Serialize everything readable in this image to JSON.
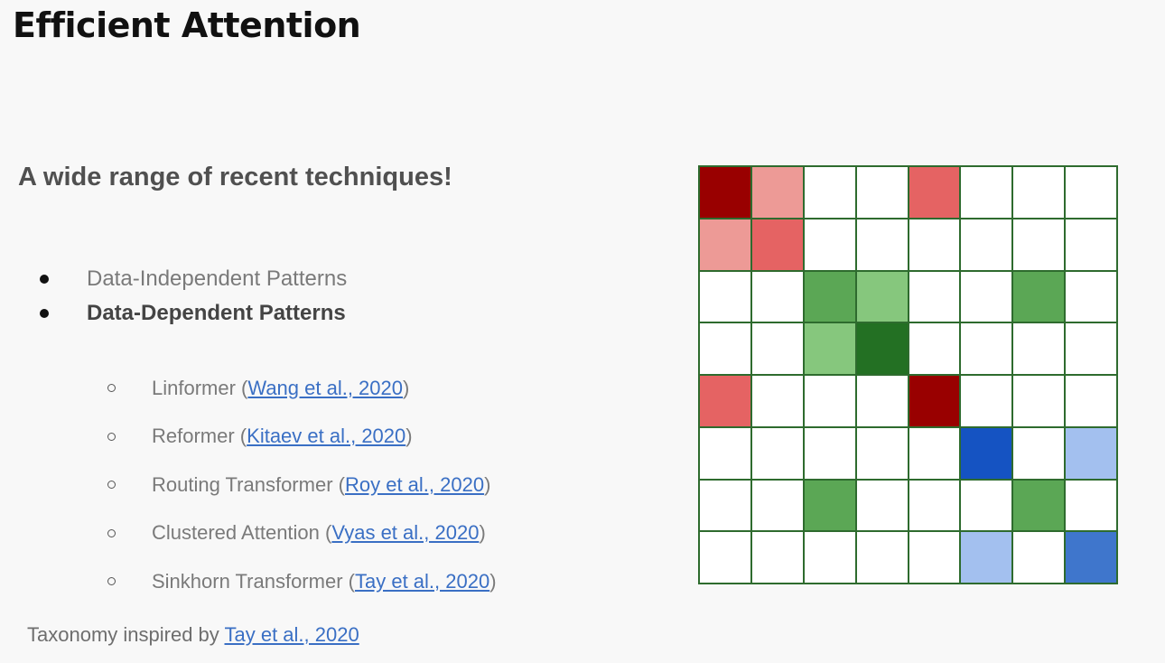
{
  "title": "Efficient Attention",
  "subtitle": "A wide range of recent techniques!",
  "bullets": [
    {
      "text": "Data-Independent Patterns"
    },
    {
      "text": "Data-Dependent Patterns"
    }
  ],
  "sub_bullets": [
    {
      "name": "Linformer",
      "open": " (",
      "cite": "Wang et al., 2020",
      "close": ")"
    },
    {
      "name": "Reformer",
      "open": " (",
      "cite": "Kitaev et al., 2020",
      "close": ")"
    },
    {
      "name": "Routing Transformer",
      "open": " (",
      "cite": "Roy et al., 2020",
      "close": ")"
    },
    {
      "name": "Clustered Attention",
      "open": " (",
      "cite": "Vyas et al., 2020",
      "close": ")"
    },
    {
      "name": "Sinkhorn Transformer",
      "open": " (",
      "cite": "Tay et al., 2020",
      "close": ")"
    }
  ],
  "footer": {
    "prefix": "Taxonomy inspired by ",
    "cite": "Tay et al., 2020"
  },
  "colors": {
    "grid_line": "#2e6b2e",
    "link": "#3a6fc4",
    "R": "#990000",
    "r": "#e56363",
    "p": "#ed9a96",
    "G": "#237023",
    "g": "#5ba755",
    "l": "#86c77d",
    "B": "#1553c2",
    "b": "#3f76cc",
    "c": "#a3c0ef"
  },
  "matrix": [
    [
      "R",
      "p",
      ".",
      ".",
      "r",
      ".",
      ".",
      "."
    ],
    [
      "p",
      "r",
      ".",
      ".",
      ".",
      ".",
      ".",
      "."
    ],
    [
      ".",
      ".",
      "g",
      "l",
      ".",
      ".",
      "g",
      "."
    ],
    [
      ".",
      ".",
      "l",
      "G",
      ".",
      ".",
      ".",
      "."
    ],
    [
      "r",
      ".",
      ".",
      ".",
      "R",
      ".",
      ".",
      "."
    ],
    [
      ".",
      ".",
      ".",
      ".",
      ".",
      "B",
      ".",
      "c"
    ],
    [
      ".",
      ".",
      "g",
      ".",
      ".",
      ".",
      "g",
      "."
    ],
    [
      ".",
      ".",
      ".",
      ".",
      ".",
      "c",
      ".",
      "b"
    ]
  ]
}
